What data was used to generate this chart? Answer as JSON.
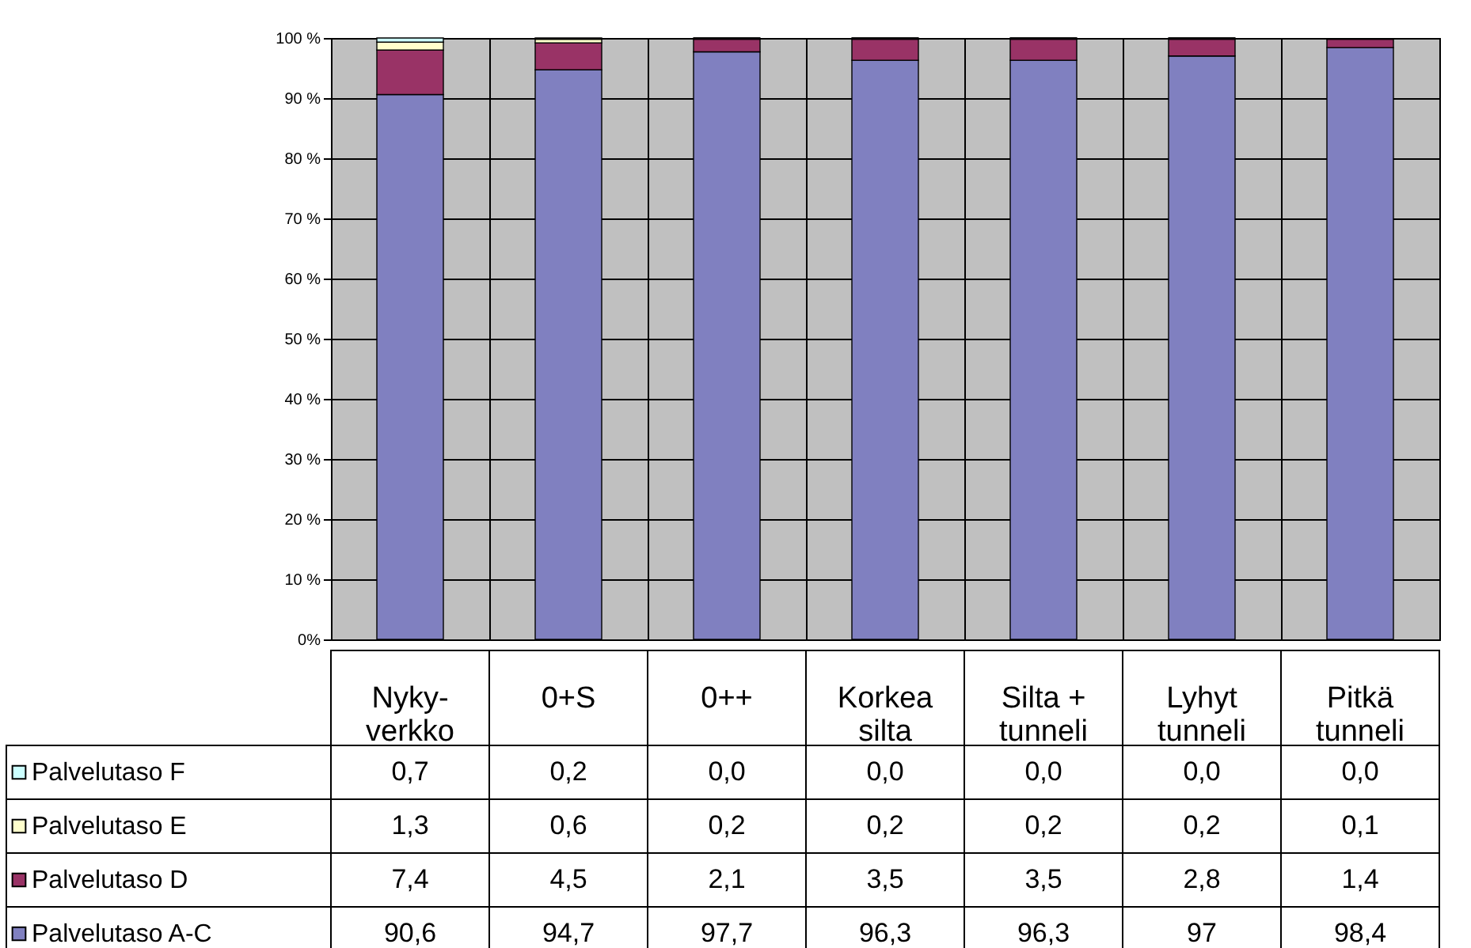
{
  "chart_data": {
    "type": "bar",
    "stacked": true,
    "categories": [
      "Nyky-verkko",
      "0+S",
      "0++",
      "Korkea silta",
      "Silta + tunneli",
      "Lyhyt tunneli",
      "Pitkä tunneli"
    ],
    "series": [
      {
        "name": "Palvelutaso A-C",
        "color": "#8080c0",
        "values": [
          90.6,
          94.7,
          97.7,
          96.3,
          96.3,
          97,
          98.4
        ],
        "value_labels": [
          "90,6",
          "94,7",
          "97,7",
          "96,3",
          "96,3",
          "97",
          "98,4"
        ]
      },
      {
        "name": "Palvelutaso D",
        "color": "#993366",
        "values": [
          7.4,
          4.5,
          2.1,
          3.5,
          3.5,
          2.8,
          1.4
        ],
        "value_labels": [
          "7,4",
          "4,5",
          "2,1",
          "3,5",
          "3,5",
          "2,8",
          "1,4"
        ]
      },
      {
        "name": "Palvelutaso E",
        "color": "#ffffcc",
        "values": [
          1.3,
          0.6,
          0.2,
          0.2,
          0.2,
          0.2,
          0.1
        ],
        "value_labels": [
          "1,3",
          "0,6",
          "0,2",
          "0,2",
          "0,2",
          "0,2",
          "0,1"
        ]
      },
      {
        "name": "Palvelutaso F",
        "color": "#ccffff",
        "values": [
          0.7,
          0.2,
          0.0,
          0.0,
          0.0,
          0.0,
          0.0
        ],
        "value_labels": [
          "0,7",
          "0,2",
          "0,0",
          "0,0",
          "0,0",
          "0,0",
          "0,0"
        ]
      }
    ],
    "ylim": [
      0,
      100
    ],
    "yticks": [
      {
        "value": 0,
        "label": "0%"
      },
      {
        "value": 10,
        "label": "10 %"
      },
      {
        "value": 20,
        "label": "20 %"
      },
      {
        "value": 30,
        "label": "30 %"
      },
      {
        "value": 40,
        "label": "40 %"
      },
      {
        "value": 50,
        "label": "50 %"
      },
      {
        "value": 60,
        "label": "60 %"
      },
      {
        "value": 70,
        "label": "70 %"
      },
      {
        "value": 80,
        "label": "80 %"
      },
      {
        "value": 90,
        "label": "90 %"
      },
      {
        "value": 100,
        "label": "100 %"
      }
    ],
    "grid": true,
    "legend": "bottom"
  }
}
